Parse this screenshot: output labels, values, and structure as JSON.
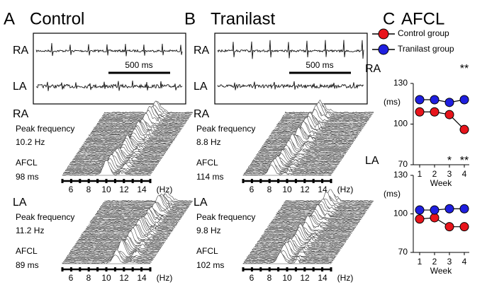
{
  "panels": [
    {
      "letter": "A",
      "title": "Control",
      "traces": {
        "ra_label": "RA",
        "la_label": "LA",
        "scale": "500 ms"
      },
      "spectra": [
        {
          "label": "RA",
          "peak_label": "Peak frequency",
          "peak": "10.2 Hz",
          "afcl_label": "AFCL",
          "afcl": "98 ms",
          "freq_ticks": [
            6,
            8,
            10,
            12,
            14
          ],
          "unit": "(Hz)"
        },
        {
          "label": "LA",
          "peak_label": "Peak frequency",
          "peak": "11.2 Hz",
          "afcl_label": "AFCL",
          "afcl": "89 ms",
          "freq_ticks": [
            6,
            8,
            10,
            12,
            14
          ],
          "unit": "(Hz)"
        }
      ]
    },
    {
      "letter": "B",
      "title": "Tranilast",
      "traces": {
        "ra_label": "RA",
        "la_label": "LA",
        "scale": "500 ms"
      },
      "spectra": [
        {
          "label": "RA",
          "peak_label": "Peak frequency",
          "peak": "8.8 Hz",
          "afcl_label": "AFCL",
          "afcl": "114 ms",
          "freq_ticks": [
            6,
            8,
            10,
            12,
            14
          ],
          "unit": "(Hz)"
        },
        {
          "label": "LA",
          "peak_label": "Peak frequency",
          "peak": "9.8 Hz",
          "afcl_label": "AFCL",
          "afcl": "102 ms",
          "freq_ticks": [
            6,
            8,
            10,
            12,
            14
          ],
          "unit": "(Hz)"
        }
      ]
    }
  ],
  "panel_c": {
    "letter": "C",
    "title": "AFCL"
  },
  "chart_data": [
    {
      "type": "line",
      "title": "RA",
      "ylabel": "(ms)",
      "xlabel": "Week",
      "categories": [
        "1",
        "2",
        "3",
        "4"
      ],
      "ylim": [
        70,
        130
      ],
      "yticks": [
        70,
        100,
        130
      ],
      "series": [
        {
          "name": "Control group",
          "color": "#e8141b",
          "values": [
            109,
            109,
            107,
            96
          ]
        },
        {
          "name": "Tranilast group",
          "color": "#1f1fe0",
          "values": [
            118,
            118,
            116,
            118
          ]
        }
      ],
      "annotations": [
        {
          "category": "4",
          "text": "**"
        }
      ]
    },
    {
      "type": "line",
      "title": "LA",
      "ylabel": "(ms)",
      "xlabel": "Week",
      "categories": [
        "1",
        "2",
        "3",
        "4"
      ],
      "ylim": [
        70,
        130
      ],
      "yticks": [
        70,
        100,
        130
      ],
      "series": [
        {
          "color": "#e8141b",
          "values": [
            96,
            97,
            90,
            90
          ]
        },
        {
          "color": "#1f1fe0",
          "values": [
            103,
            103,
            104,
            104
          ]
        }
      ],
      "annotations": [
        {
          "category": "3",
          "text": "*"
        },
        {
          "category": "4",
          "text": "**"
        }
      ]
    }
  ]
}
